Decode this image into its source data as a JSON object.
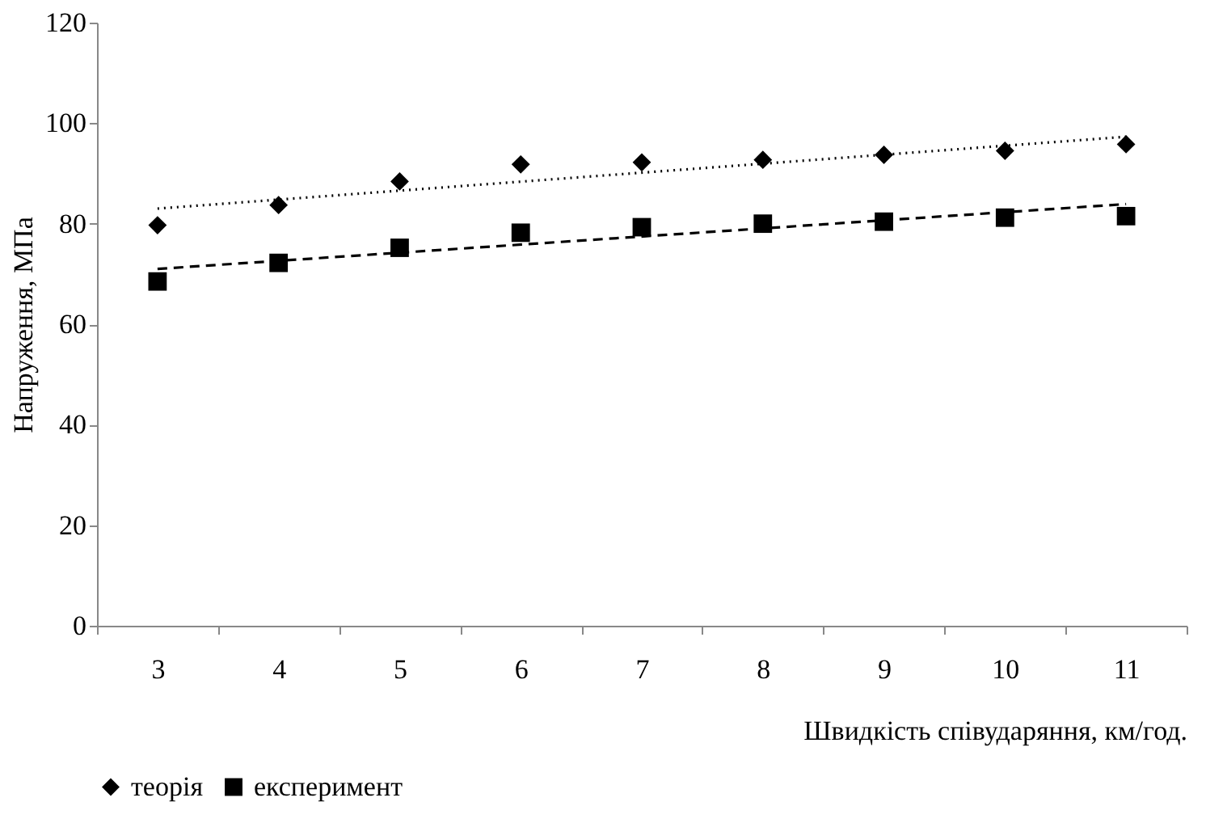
{
  "chart_data": {
    "type": "scatter",
    "xlabel": "Швидкість співударяння, км/год.",
    "ylabel": "Напруження, МПа",
    "categories": [
      "3",
      "4",
      "5",
      "6",
      "7",
      "8",
      "9",
      "10",
      "11"
    ],
    "series": [
      {
        "name": "теорія",
        "color": "#000000",
        "marker": "diamond",
        "values": [
          79.7,
          83.7,
          88.4,
          91.8,
          92.2,
          92.7,
          93.7,
          94.5,
          95.8
        ]
      },
      {
        "name": "експеримент",
        "color": "#000000",
        "marker": "square",
        "values": [
          68.5,
          72.2,
          75.2,
          78.2,
          79.3,
          80.0,
          80.4,
          81.2,
          81.5
        ]
      },
      {
        "type": "line",
        "color": "#000000",
        "line_style": "dotted",
        "marker": "none",
        "x": [
          "3",
          "11"
        ],
        "values": [
          83.0,
          97.3
        ]
      },
      {
        "type": "line",
        "color": "#000000",
        "line_style": "dashed",
        "marker": "none",
        "x": [
          "3",
          "11"
        ],
        "values": [
          71.0,
          83.9
        ]
      }
    ],
    "ylim": [
      0,
      120
    ],
    "yticks": [
      0,
      20,
      40,
      60,
      80,
      100,
      120
    ],
    "grid": false,
    "legend": "bottom"
  }
}
